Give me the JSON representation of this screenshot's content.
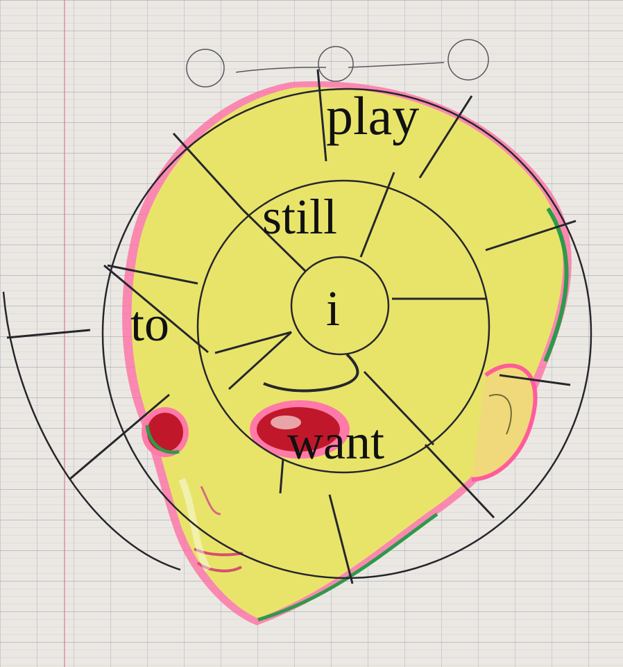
{
  "words": {
    "play": "play",
    "still": "still",
    "i": "i",
    "to": "to",
    "want": "want"
  },
  "colors": {
    "paper": "#ebe8e3",
    "skin_yellow": "#e8e46a",
    "pink_outline": "#ff5c9a",
    "green_outline": "#2e9a4a",
    "eye_red": "#c0182a",
    "pencil": "#2a2a30"
  }
}
